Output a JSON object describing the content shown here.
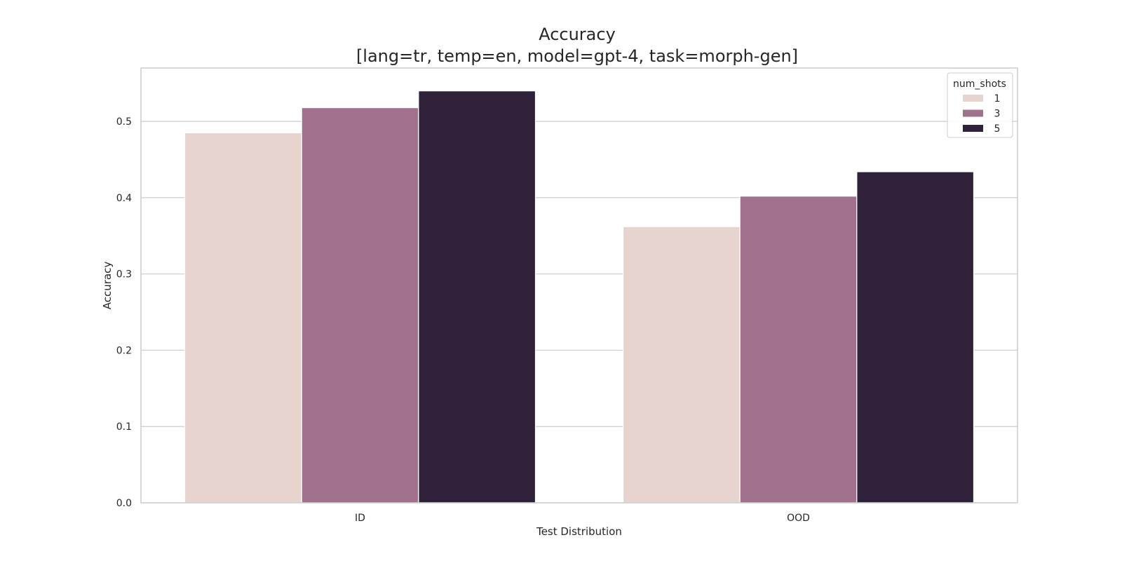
{
  "chart_data": {
    "type": "bar",
    "title": "Accuracy",
    "subtitle": "[lang=tr, temp=en, model=gpt-4, task=morph-gen]",
    "xlabel": "Test Distribution",
    "ylabel": "Accuracy",
    "categories": [
      "ID",
      "OOD"
    ],
    "ylim": [
      0,
      0.57
    ],
    "yticks": [
      "0.0",
      "0.1",
      "0.2",
      "0.3",
      "0.4",
      "0.5"
    ],
    "grid": true,
    "legend": {
      "title": "num_shots",
      "placement": "top-right"
    },
    "series": [
      {
        "name": "1",
        "color": "#e7d4cf",
        "values": [
          0.485,
          0.362
        ]
      },
      {
        "name": "3",
        "color": "#a0708c",
        "values": [
          0.518,
          0.402
        ]
      },
      {
        "name": "5",
        "color": "#2f213a",
        "values": [
          0.54,
          0.434
        ]
      }
    ]
  }
}
